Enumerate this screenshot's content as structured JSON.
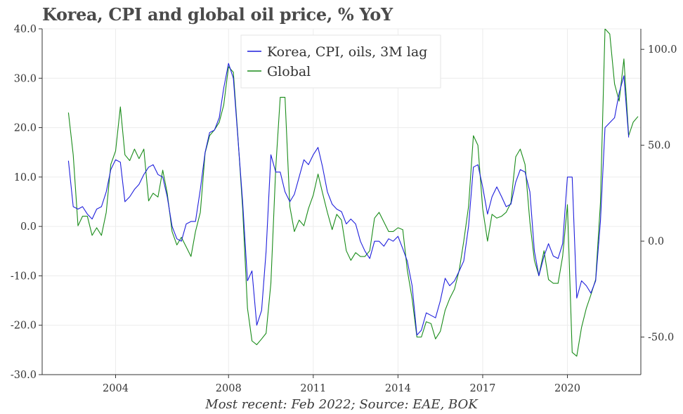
{
  "chart_data": {
    "type": "line",
    "title": "Korea, CPI and global oil price, % YoY",
    "source": "Most recent: Feb 2022; Source: EAE, BOK",
    "xlabel": "",
    "x_ticks": [
      2004,
      2008,
      2011,
      2014,
      2017,
      2020
    ],
    "x_range": [
      2001.4,
      2022.6
    ],
    "left_axis": {
      "ylim": [
        -30,
        40
      ],
      "ticks": [
        "40.0",
        "30.0",
        "20.0",
        "10.0",
        "0.0",
        "-10.0",
        "-20.0",
        "-30.0"
      ],
      "tick_values": [
        40,
        30,
        20,
        10,
        0,
        -10,
        -20,
        -30
      ]
    },
    "right_axis": {
      "ylim": [
        -69.6,
        110.7
      ],
      "ticks": [
        "100.0",
        "50.0",
        "0.0",
        "-50.0"
      ],
      "tick_values": [
        100,
        50,
        0,
        -50
      ]
    },
    "legend": {
      "position": "top-center",
      "labels": [
        "Korea, CPI, oils, 3M lag",
        "Global"
      ]
    },
    "series": [
      {
        "name": "Korea, CPI, oils, 3M lag",
        "axis": "left",
        "color": "#1f1fdc",
        "points": [
          [
            2002.33,
            13.3
          ],
          [
            2002.5,
            4.0
          ],
          [
            2002.67,
            3.5
          ],
          [
            2002.83,
            4.0
          ],
          [
            2003.0,
            2.5
          ],
          [
            2003.17,
            1.5
          ],
          [
            2003.33,
            3.5
          ],
          [
            2003.5,
            4.0
          ],
          [
            2003.67,
            7.0
          ],
          [
            2003.83,
            11.5
          ],
          [
            2004.0,
            13.5
          ],
          [
            2004.17,
            13.0
          ],
          [
            2004.33,
            5.0
          ],
          [
            2004.5,
            6.0
          ],
          [
            2004.67,
            7.5
          ],
          [
            2004.83,
            8.5
          ],
          [
            2005.0,
            10.5
          ],
          [
            2005.17,
            12.0
          ],
          [
            2005.33,
            12.5
          ],
          [
            2005.5,
            10.5
          ],
          [
            2005.67,
            10.0
          ],
          [
            2005.83,
            6.0
          ],
          [
            2006.0,
            0.0
          ],
          [
            2006.17,
            -2.5
          ],
          [
            2006.33,
            -3.0
          ],
          [
            2006.5,
            0.5
          ],
          [
            2006.67,
            1.0
          ],
          [
            2006.83,
            1.0
          ],
          [
            2007.0,
            7.5
          ],
          [
            2007.17,
            15.0
          ],
          [
            2007.33,
            19.0
          ],
          [
            2007.5,
            19.5
          ],
          [
            2007.67,
            22.0
          ],
          [
            2007.83,
            28.0
          ],
          [
            2008.0,
            33.0
          ],
          [
            2008.17,
            30.0
          ],
          [
            2008.33,
            18.0
          ],
          [
            2008.5,
            5.0
          ],
          [
            2008.67,
            -11.0
          ],
          [
            2008.83,
            -9.0
          ],
          [
            2009.0,
            -20.0
          ],
          [
            2009.17,
            -17.0
          ],
          [
            2009.33,
            -5.0
          ],
          [
            2009.5,
            14.5
          ],
          [
            2009.67,
            11.0
          ],
          [
            2009.83,
            11.0
          ],
          [
            2010.0,
            7.0
          ],
          [
            2010.17,
            5.0
          ],
          [
            2010.33,
            6.5
          ],
          [
            2010.5,
            10.0
          ],
          [
            2010.67,
            13.5
          ],
          [
            2010.83,
            12.5
          ],
          [
            2011.0,
            14.5
          ],
          [
            2011.17,
            16.0
          ],
          [
            2011.33,
            12.0
          ],
          [
            2011.5,
            7.0
          ],
          [
            2011.67,
            4.5
          ],
          [
            2011.83,
            3.5
          ],
          [
            2012.0,
            3.0
          ],
          [
            2012.17,
            0.5
          ],
          [
            2012.33,
            1.5
          ],
          [
            2012.5,
            0.5
          ],
          [
            2012.67,
            -3.0
          ],
          [
            2012.83,
            -5.0
          ],
          [
            2013.0,
            -6.5
          ],
          [
            2013.17,
            -3.0
          ],
          [
            2013.33,
            -3.0
          ],
          [
            2013.5,
            -4.0
          ],
          [
            2013.67,
            -2.5
          ],
          [
            2013.83,
            -3.0
          ],
          [
            2014.0,
            -2.0
          ],
          [
            2014.17,
            -4.5
          ],
          [
            2014.33,
            -7.0
          ],
          [
            2014.5,
            -12.0
          ],
          [
            2014.67,
            -22.0
          ],
          [
            2014.83,
            -21.0
          ],
          [
            2015.0,
            -17.5
          ],
          [
            2015.17,
            -18.0
          ],
          [
            2015.33,
            -18.5
          ],
          [
            2015.5,
            -15.0
          ],
          [
            2015.67,
            -10.5
          ],
          [
            2015.83,
            -12.0
          ],
          [
            2016.0,
            -11.0
          ],
          [
            2016.17,
            -9.0
          ],
          [
            2016.33,
            -7.0
          ],
          [
            2016.5,
            0.0
          ],
          [
            2016.67,
            12.0
          ],
          [
            2016.83,
            12.5
          ],
          [
            2017.0,
            8.0
          ],
          [
            2017.17,
            2.5
          ],
          [
            2017.33,
            6.0
          ],
          [
            2017.5,
            8.0
          ],
          [
            2017.67,
            6.0
          ],
          [
            2017.83,
            4.0
          ],
          [
            2018.0,
            4.5
          ],
          [
            2018.17,
            9.0
          ],
          [
            2018.33,
            11.5
          ],
          [
            2018.5,
            11.0
          ],
          [
            2018.67,
            7.0
          ],
          [
            2018.83,
            -5.0
          ],
          [
            2018.99,
            -10.0
          ],
          [
            2019.17,
            -6.0
          ],
          [
            2019.33,
            -3.5
          ],
          [
            2019.5,
            -6.0
          ],
          [
            2019.67,
            -6.5
          ],
          [
            2019.83,
            -3.5
          ],
          [
            2020.0,
            10.0
          ],
          [
            2020.17,
            10.0
          ],
          [
            2020.33,
            -14.5
          ],
          [
            2020.5,
            -11.0
          ],
          [
            2020.67,
            -12.0
          ],
          [
            2020.83,
            -13.5
          ],
          [
            2021.0,
            -11.0
          ],
          [
            2021.17,
            1.0
          ],
          [
            2021.33,
            20.0
          ],
          [
            2021.5,
            21.0
          ],
          [
            2021.67,
            22.0
          ],
          [
            2021.83,
            27.0
          ],
          [
            2022.0,
            30.5
          ],
          [
            2022.17,
            18.0
          ]
        ]
      },
      {
        "name": "Global",
        "axis": "right",
        "color": "#1a8c1a",
        "points": [
          [
            2002.33,
            67.0
          ],
          [
            2002.5,
            45.0
          ],
          [
            2002.67,
            8.0
          ],
          [
            2002.83,
            13.0
          ],
          [
            2003.0,
            13.0
          ],
          [
            2003.17,
            3.0
          ],
          [
            2003.33,
            7.0
          ],
          [
            2003.5,
            3.0
          ],
          [
            2003.67,
            15.0
          ],
          [
            2003.83,
            40.0
          ],
          [
            2004.0,
            47.0
          ],
          [
            2004.17,
            70.0
          ],
          [
            2004.33,
            45.0
          ],
          [
            2004.5,
            42.0
          ],
          [
            2004.67,
            48.0
          ],
          [
            2004.83,
            43.0
          ],
          [
            2005.0,
            48.0
          ],
          [
            2005.17,
            21.0
          ],
          [
            2005.33,
            25.0
          ],
          [
            2005.5,
            23.0
          ],
          [
            2005.67,
            37.0
          ],
          [
            2005.83,
            25.0
          ],
          [
            2006.0,
            5.0
          ],
          [
            2006.17,
            -2.0
          ],
          [
            2006.33,
            2.0
          ],
          [
            2006.5,
            -3.0
          ],
          [
            2006.67,
            -8.0
          ],
          [
            2006.83,
            5.0
          ],
          [
            2007.0,
            15.0
          ],
          [
            2007.17,
            46.0
          ],
          [
            2007.33,
            55.0
          ],
          [
            2007.5,
            58.0
          ],
          [
            2007.67,
            62.0
          ],
          [
            2007.83,
            71.0
          ],
          [
            2008.0,
            91.0
          ],
          [
            2008.17,
            88.0
          ],
          [
            2008.33,
            55.0
          ],
          [
            2008.5,
            17.0
          ],
          [
            2008.67,
            -35.0
          ],
          [
            2008.83,
            -52.0
          ],
          [
            2009.0,
            -54.0
          ],
          [
            2009.17,
            -51.0
          ],
          [
            2009.33,
            -48.0
          ],
          [
            2009.5,
            -22.0
          ],
          [
            2009.67,
            38.0
          ],
          [
            2009.83,
            75.0
          ],
          [
            2010.0,
            75.0
          ],
          [
            2010.17,
            18.0
          ],
          [
            2010.33,
            5.0
          ],
          [
            2010.5,
            11.0
          ],
          [
            2010.67,
            8.0
          ],
          [
            2010.83,
            17.0
          ],
          [
            2011.0,
            24.0
          ],
          [
            2011.17,
            35.0
          ],
          [
            2011.33,
            25.0
          ],
          [
            2011.5,
            15.0
          ],
          [
            2011.67,
            6.0
          ],
          [
            2011.83,
            14.0
          ],
          [
            2012.0,
            11.0
          ],
          [
            2012.17,
            -5.0
          ],
          [
            2012.33,
            -10.0
          ],
          [
            2012.5,
            -6.0
          ],
          [
            2012.67,
            -8.0
          ],
          [
            2012.83,
            -8.0
          ],
          [
            2013.0,
            -5.0
          ],
          [
            2013.17,
            12.0
          ],
          [
            2013.33,
            15.0
          ],
          [
            2013.5,
            10.0
          ],
          [
            2013.67,
            5.0
          ],
          [
            2013.83,
            5.0
          ],
          [
            2014.0,
            7.0
          ],
          [
            2014.17,
            6.0
          ],
          [
            2014.33,
            -15.0
          ],
          [
            2014.5,
            -30.0
          ],
          [
            2014.67,
            -50.0
          ],
          [
            2014.83,
            -50.0
          ],
          [
            2015.0,
            -42.0
          ],
          [
            2015.17,
            -43.0
          ],
          [
            2015.33,
            -51.0
          ],
          [
            2015.5,
            -47.0
          ],
          [
            2015.67,
            -36.0
          ],
          [
            2015.83,
            -30.0
          ],
          [
            2016.0,
            -25.0
          ],
          [
            2016.17,
            -15.0
          ],
          [
            2016.33,
            0.0
          ],
          [
            2016.5,
            18.0
          ],
          [
            2016.67,
            55.0
          ],
          [
            2016.83,
            50.0
          ],
          [
            2017.0,
            17.0
          ],
          [
            2017.17,
            0.0
          ],
          [
            2017.33,
            14.0
          ],
          [
            2017.5,
            12.0
          ],
          [
            2017.67,
            13.0
          ],
          [
            2017.83,
            15.0
          ],
          [
            2018.0,
            20.0
          ],
          [
            2018.17,
            44.0
          ],
          [
            2018.33,
            48.0
          ],
          [
            2018.5,
            40.0
          ],
          [
            2018.67,
            10.0
          ],
          [
            2018.83,
            -10.0
          ],
          [
            2018.99,
            -18.0
          ],
          [
            2019.17,
            -5.0
          ],
          [
            2019.33,
            -20.0
          ],
          [
            2019.5,
            -22.0
          ],
          [
            2019.67,
            -22.0
          ],
          [
            2019.83,
            -8.0
          ],
          [
            2020.0,
            19.0
          ],
          [
            2020.17,
            -58.0
          ],
          [
            2020.33,
            -60.0
          ],
          [
            2020.5,
            -45.0
          ],
          [
            2020.67,
            -35.0
          ],
          [
            2020.83,
            -28.0
          ],
          [
            2021.0,
            -20.0
          ],
          [
            2021.17,
            20.0
          ],
          [
            2021.33,
            110.7
          ],
          [
            2021.5,
            108.0
          ],
          [
            2021.67,
            82.0
          ],
          [
            2021.83,
            73.0
          ],
          [
            2022.0,
            95.0
          ],
          [
            2022.17,
            55.0
          ],
          [
            2022.33,
            62.0
          ],
          [
            2022.5,
            65.0
          ]
        ]
      }
    ]
  }
}
